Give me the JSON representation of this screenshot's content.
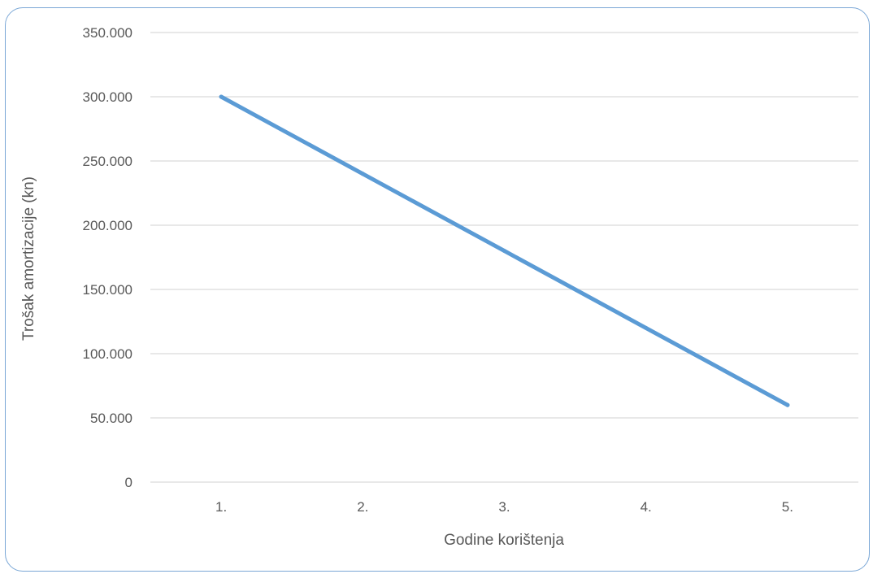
{
  "chart_data": {
    "type": "line",
    "title": "",
    "xlabel": "Godine korištenja",
    "ylabel": "Trošak amortizacije (kn)",
    "categories": [
      "1.",
      "2.",
      "3.",
      "4.",
      "5."
    ],
    "series": [
      {
        "values": [
          300000,
          240000,
          180000,
          120000,
          60000
        ]
      }
    ],
    "ylim": [
      0,
      350000
    ],
    "yticks": [
      0,
      50000,
      100000,
      150000,
      200000,
      250000,
      300000,
      350000
    ],
    "ytick_labels": [
      "0",
      "50.000",
      "100.000",
      "150.000",
      "200.000",
      "250.000",
      "300.000",
      "350.000"
    ],
    "grid": true,
    "legend": "none",
    "colors": {
      "line": "#5b9bd5",
      "grid": "#d9d9d9",
      "text": "#595959",
      "frame": "#7aa7d6"
    }
  }
}
